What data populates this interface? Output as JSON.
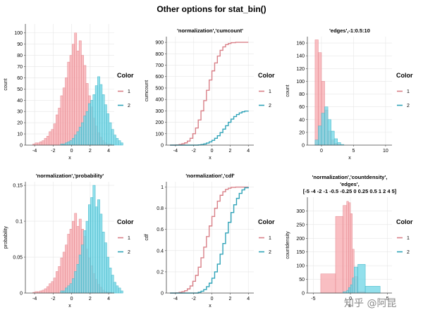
{
  "figure": {
    "title": "Other options for stat_bin()",
    "watermark": "知乎 @阿昆",
    "legend_title": "Color",
    "colors": {
      "1": "#f7a8ae",
      "2": "#6fd6e6",
      "line1": "#d98088",
      "line2": "#2fa3b8",
      "bar_edge1": "#e3868e",
      "bar_edge2": "#3fb4c6"
    }
  },
  "chart_data": [
    {
      "type": "bar",
      "title": "",
      "xlabel": "x",
      "ylabel": "count",
      "xlim": [
        -5,
        4.6
      ],
      "ylim": [
        0,
        108
      ],
      "xticks": [
        "-4",
        "-2",
        "0",
        "2",
        "4"
      ],
      "yticks": [
        "0",
        "10",
        "20",
        "30",
        "40",
        "50",
        "60",
        "70",
        "80",
        "90",
        "100"
      ],
      "bin_start": -4.2,
      "bin_width": 0.25,
      "series": [
        {
          "name": "1",
          "values": [
            1,
            2,
            2,
            3,
            4,
            6,
            8,
            12,
            14,
            19,
            27,
            33,
            44,
            51,
            60,
            74,
            80,
            90,
            100,
            84,
            93,
            80,
            71,
            55,
            44,
            34,
            24,
            17,
            11,
            7,
            4,
            2,
            1,
            1,
            0,
            0,
            0,
            0,
            0
          ]
        },
        {
          "name": "2",
          "values": [
            0,
            0,
            0,
            0,
            0,
            0,
            0,
            0,
            0,
            0,
            0,
            0,
            1,
            1,
            2,
            3,
            4,
            6,
            9,
            12,
            16,
            20,
            26,
            30,
            37,
            40,
            45,
            53,
            61,
            54,
            45,
            36,
            28,
            20,
            14,
            9,
            6,
            4,
            2
          ]
        }
      ],
      "legend": {
        "title": "Color",
        "entries": [
          "1",
          "2"
        ],
        "position": "right"
      }
    },
    {
      "type": "line",
      "title": "'normalization','cumcount'",
      "xlabel": "x",
      "ylabel": "cumcount",
      "xlim": [
        -5,
        4.6
      ],
      "ylim": [
        0,
        950
      ],
      "xticks": [
        "-4",
        "-2",
        "0",
        "2",
        "4"
      ],
      "yticks": [
        "0",
        "100",
        "200",
        "300",
        "400",
        "500",
        "600",
        "700",
        "800",
        "900"
      ],
      "series": [
        {
          "name": "1",
          "x": [
            -4.6,
            -4.0,
            -3.6,
            -3.3,
            -3.0,
            -2.7,
            -2.4,
            -2.1,
            -1.8,
            -1.5,
            -1.2,
            -0.9,
            -0.6,
            -0.3,
            0.0,
            0.3,
            0.6,
            0.9,
            1.2,
            1.5,
            1.8,
            2.1,
            2.6,
            4.0
          ],
          "y": [
            0,
            2,
            6,
            12,
            20,
            35,
            60,
            100,
            150,
            220,
            300,
            390,
            480,
            570,
            650,
            720,
            780,
            830,
            860,
            880,
            890,
            897,
            900,
            900
          ]
        },
        {
          "name": "2",
          "x": [
            -4.6,
            -1.8,
            -1.5,
            -1.2,
            -0.9,
            -0.6,
            -0.3,
            0.0,
            0.3,
            0.6,
            0.9,
            1.2,
            1.5,
            1.8,
            2.1,
            2.4,
            2.7,
            3.0,
            3.3,
            3.6,
            4.0
          ],
          "y": [
            0,
            0,
            2,
            5,
            10,
            18,
            28,
            42,
            60,
            82,
            110,
            140,
            170,
            200,
            228,
            250,
            268,
            282,
            292,
            298,
            300
          ]
        }
      ],
      "legend": {
        "title": "Color",
        "entries": [
          "1",
          "2"
        ],
        "position": "right"
      }
    },
    {
      "type": "bar",
      "title": "'edges',-1:0.5:10",
      "xlabel": "x",
      "ylabel": "count",
      "xlim": [
        -2.2,
        11
      ],
      "ylim": [
        0,
        170
      ],
      "xticks": [
        "0",
        "5",
        "10"
      ],
      "yticks": [
        "0",
        "20",
        "40",
        "60",
        "80",
        "100",
        "120",
        "140",
        "160"
      ],
      "bin_start": -1,
      "bin_width": 0.5,
      "series": [
        {
          "name": "1",
          "values": [
            165,
            145,
            100,
            55,
            22,
            8,
            3,
            1
          ]
        },
        {
          "name": "2",
          "values": [
            8,
            30,
            50,
            60,
            40,
            22,
            10,
            4,
            1
          ]
        }
      ],
      "legend": {
        "title": "Color",
        "entries": [
          "1",
          "2"
        ],
        "position": "right"
      }
    },
    {
      "type": "bar",
      "title": "'normalization','probability'",
      "xlabel": "x",
      "ylabel": "probability",
      "xlim": [
        -5,
        4.6
      ],
      "ylim": [
        0,
        0.155
      ],
      "xticks": [
        "-4",
        "-2",
        "0",
        "2",
        "4"
      ],
      "yticks": [
        "0",
        "0.05",
        "0.1",
        "0.15"
      ],
      "bin_start": -4.2,
      "bin_width": 0.25,
      "series": [
        {
          "name": "1",
          "values": [
            0.001,
            0.002,
            0.002,
            0.003,
            0.004,
            0.006,
            0.009,
            0.013,
            0.016,
            0.021,
            0.03,
            0.037,
            0.049,
            0.057,
            0.067,
            0.082,
            0.089,
            0.1,
            0.111,
            0.093,
            0.103,
            0.089,
            0.079,
            0.061,
            0.049,
            0.038,
            0.027,
            0.019,
            0.012,
            0.008,
            0.004,
            0.002,
            0.001,
            0.001,
            0,
            0,
            0,
            0,
            0
          ]
        },
        {
          "name": "2",
          "values": [
            0,
            0,
            0,
            0,
            0,
            0,
            0,
            0,
            0,
            0,
            0,
            0,
            0.003,
            0.003,
            0.007,
            0.01,
            0.013,
            0.02,
            0.03,
            0.04,
            0.053,
            0.067,
            0.087,
            0.1,
            0.123,
            0.133,
            0.15,
            0.12,
            0.13,
            0.11,
            0.085,
            0.07,
            0.05,
            0.035,
            0.025,
            0.015,
            0.01,
            0.007,
            0.003
          ]
        }
      ],
      "legend": {
        "title": "Color",
        "entries": [
          "1",
          "2"
        ],
        "position": "right"
      }
    },
    {
      "type": "line",
      "title": "'normalization','cdf'",
      "xlabel": "x",
      "ylabel": "cdf",
      "xlim": [
        -5,
        4.6
      ],
      "ylim": [
        0,
        1.05
      ],
      "xticks": [
        "-4",
        "-2",
        "0",
        "2",
        "4"
      ],
      "yticks": [
        "0",
        "0.2",
        "0.4",
        "0.6",
        "0.8",
        "1"
      ],
      "series": [
        {
          "name": "1",
          "x": [
            -4.6,
            -4.0,
            -3.6,
            -3.3,
            -3.0,
            -2.7,
            -2.4,
            -2.1,
            -1.8,
            -1.5,
            -1.2,
            -0.9,
            -0.6,
            -0.3,
            0.0,
            0.3,
            0.6,
            0.9,
            1.2,
            1.5,
            1.8,
            2.1,
            2.6,
            4.0
          ],
          "y": [
            0,
            0.002,
            0.007,
            0.013,
            0.022,
            0.039,
            0.067,
            0.111,
            0.167,
            0.244,
            0.333,
            0.433,
            0.533,
            0.633,
            0.722,
            0.8,
            0.867,
            0.922,
            0.956,
            0.978,
            0.989,
            0.997,
            1,
            1
          ]
        },
        {
          "name": "2",
          "x": [
            -4.6,
            -1.8,
            -1.5,
            -1.2,
            -0.9,
            -0.6,
            -0.3,
            0.0,
            0.3,
            0.6,
            0.9,
            1.2,
            1.5,
            1.8,
            2.1,
            2.4,
            2.7,
            3.0,
            3.3,
            3.6,
            4.0
          ],
          "y": [
            0,
            0,
            0.007,
            0.017,
            0.033,
            0.06,
            0.093,
            0.14,
            0.2,
            0.273,
            0.367,
            0.467,
            0.567,
            0.667,
            0.76,
            0.833,
            0.893,
            0.94,
            0.973,
            0.993,
            1
          ]
        }
      ],
      "legend": {
        "title": "Color",
        "entries": [
          "1",
          "2"
        ],
        "position": "right"
      }
    },
    {
      "type": "bar",
      "title": "'normalization','countdensity',\n'edges',\n[-5 -4 -2 -1 -0.5 -0.25 0 0.25 0.5  1 2 4 5]",
      "xlabel": "x",
      "ylabel": "countdensity",
      "xlim": [
        -5.8,
        5.6
      ],
      "ylim": [
        0,
        350
      ],
      "xticks": [
        "-5",
        "0",
        "5"
      ],
      "yticks": [
        "0",
        "50",
        "100",
        "150",
        "200",
        "250",
        "300"
      ],
      "edges": [
        -5,
        -4,
        -2,
        -1,
        -0.5,
        -0.25,
        0,
        0.25,
        0.5,
        1,
        2,
        4,
        5
      ],
      "series": [
        {
          "name": "1",
          "values": [
            0,
            70,
            280,
            320,
            335,
            330,
            290,
            160,
            60,
            5,
            0,
            0
          ]
        },
        {
          "name": "2",
          "values": [
            0,
            0,
            0,
            5,
            10,
            20,
            30,
            55,
            95,
            105,
            25,
            0
          ]
        }
      ],
      "legend": {
        "title": "Color",
        "entries": [
          "1",
          "2"
        ],
        "position": "right"
      }
    }
  ]
}
